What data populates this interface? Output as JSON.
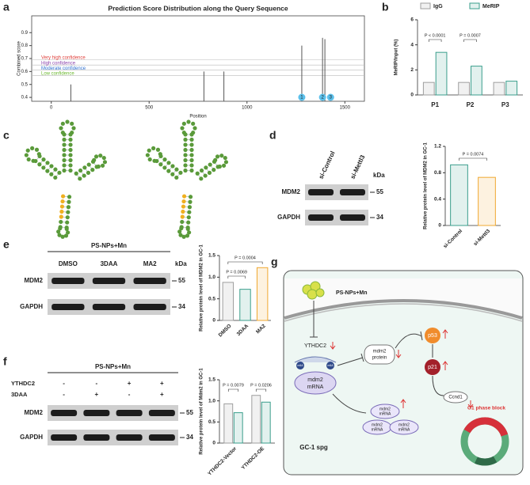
{
  "panel_labels": [
    "a",
    "b",
    "c",
    "d",
    "e",
    "f",
    "g"
  ],
  "chart_data": [
    {
      "type": "stem",
      "title": "Prediction Score Distribution along the Query Sequence",
      "xlabel": "Position",
      "ylabel": "Combined score",
      "x": [
        100,
        780,
        882,
        1280,
        1386,
        1398
      ],
      "values": [
        0.5,
        0.6,
        0.6,
        0.8,
        0.86,
        0.85
      ],
      "color": "#555555",
      "xlim": [
        -100,
        1600
      ],
      "xticks": [
        0,
        500,
        1000,
        1500
      ],
      "ylim": [
        0.37,
        1.03
      ],
      "yticks": [
        0.4,
        0.5,
        0.6,
        0.7,
        0.8,
        0.9
      ],
      "thresholds": [
        {
          "label": "Very high confidence",
          "value": 0.69,
          "color": "#e0413c"
        },
        {
          "label": "High confidence",
          "value": 0.65,
          "color": "#8e44ad"
        },
        {
          "label": "Moderate confidence",
          "value": 0.61,
          "color": "#2e6fd1"
        },
        {
          "label": "Low confidence",
          "value": 0.57,
          "color": "#6ab82e"
        }
      ],
      "sites": [
        {
          "label": "1",
          "x": 1280
        },
        {
          "label": "2",
          "x": 1386
        },
        {
          "label": "3",
          "x": 1427
        }
      ],
      "site_color": "#5bc0eb"
    },
    {
      "type": "bar",
      "ylabel": "MeRIP/input (%)",
      "categories": [
        "P1",
        "P2",
        "P3"
      ],
      "series": [
        {
          "name": "IgG",
          "color": "#9e9e9e",
          "values": [
            1,
            1,
            1
          ]
        },
        {
          "name": "MeRIP",
          "color": "#3a9e8c",
          "values": [
            3.4,
            2.3,
            1.1
          ]
        }
      ],
      "ylim": [
        0,
        6
      ],
      "yticks": [
        0,
        2,
        4,
        6
      ],
      "annotations": [
        "P < 0.0001",
        "P = 0.0007"
      ],
      "legend": "top"
    },
    {
      "type": "bar",
      "ylabel": "Relative protein level of MDM2 in GC-1",
      "categories": [
        "si-Control",
        "si-Mettl3"
      ],
      "values": [
        0.92,
        0.73
      ],
      "colors": [
        "#3a9e8c",
        "#f0a830"
      ],
      "ylim": [
        0,
        1.2
      ],
      "yticks": [
        0,
        0.4,
        0.8,
        1.2
      ],
      "annotations": [
        "P = 0.0074"
      ]
    },
    {
      "type": "bar",
      "ylabel": "Relative protein level of MDM2 in GC-1",
      "categories": [
        "DMSO",
        "3DAA",
        "MA2"
      ],
      "values": [
        0.88,
        0.72,
        1.22
      ],
      "colors": [
        "#9e9e9e",
        "#3a9e8c",
        "#f0a830"
      ],
      "ylim": [
        0,
        1.5
      ],
      "yticks": [
        0,
        0.5,
        {
          "value": 1,
          "label": "1.0"
        },
        1.5
      ],
      "annotations": [
        "P = 0.0069",
        "P = 0.0004"
      ]
    },
    {
      "type": "bar",
      "ylabel": "Relative protein level of Mdm2 in GC-1",
      "categories": [
        "YTHDC2-Vector",
        "YTHDC2-OE"
      ],
      "series": [
        {
          "color": "#9e9e9e",
          "values": [
            0.93,
            1.13
          ]
        },
        {
          "color": "#3a9e8c",
          "values": [
            0.72,
            0.97
          ]
        }
      ],
      "ylim": [
        0,
        1.5
      ],
      "yticks": [
        0,
        0.5,
        {
          "value": 1,
          "label": "1.0"
        },
        1.5
      ],
      "annotations": [
        "P = 0.0079",
        "P = 0.0206"
      ]
    }
  ],
  "blots": {
    "d": {
      "lanes": [
        "si-Control",
        "si-Mettl3"
      ],
      "unit": "kDa",
      "rows": [
        "MDM2",
        "GAPDH"
      ],
      "markers": [
        "55",
        "34"
      ]
    },
    "e": {
      "treatment": "PS-NPs+Mn",
      "lanes": [
        "DMSO",
        "3DAA",
        "MA2"
      ],
      "unit": "kDa",
      "rows": [
        "MDM2",
        "GAPDH"
      ],
      "markers": [
        "55",
        "34"
      ]
    },
    "f": {
      "treatment": "PS-NPs+Mn",
      "conditions": [
        {
          "name": "YTHDC2",
          "signs": [
            "-",
            "-",
            "+",
            "+"
          ]
        },
        {
          "name": "3DAA",
          "signs": [
            "-",
            "+",
            "-",
            "+"
          ]
        }
      ],
      "rows": [
        "MDM2",
        "GAPDH"
      ],
      "markers": [
        "55",
        "34"
      ]
    }
  },
  "diagram": {
    "stimulus": "PS-NPs+Mn",
    "reader": "YTHDC2",
    "mark": [
      "m6A",
      "m6A"
    ],
    "transcript": [
      "mdm2",
      "mRNA"
    ],
    "protein": [
      "mdm2",
      "protein"
    ],
    "p53": "p53",
    "p21": "p21",
    "ccnd1": "Ccnd1",
    "exported": [
      [
        "mdm2",
        "mRNA"
      ],
      [
        "mdm2",
        "mRNA"
      ],
      [
        "mdm2",
        "mRNA"
      ]
    ],
    "outcome": "G1 phase block",
    "cell": "GC-1 spg"
  }
}
